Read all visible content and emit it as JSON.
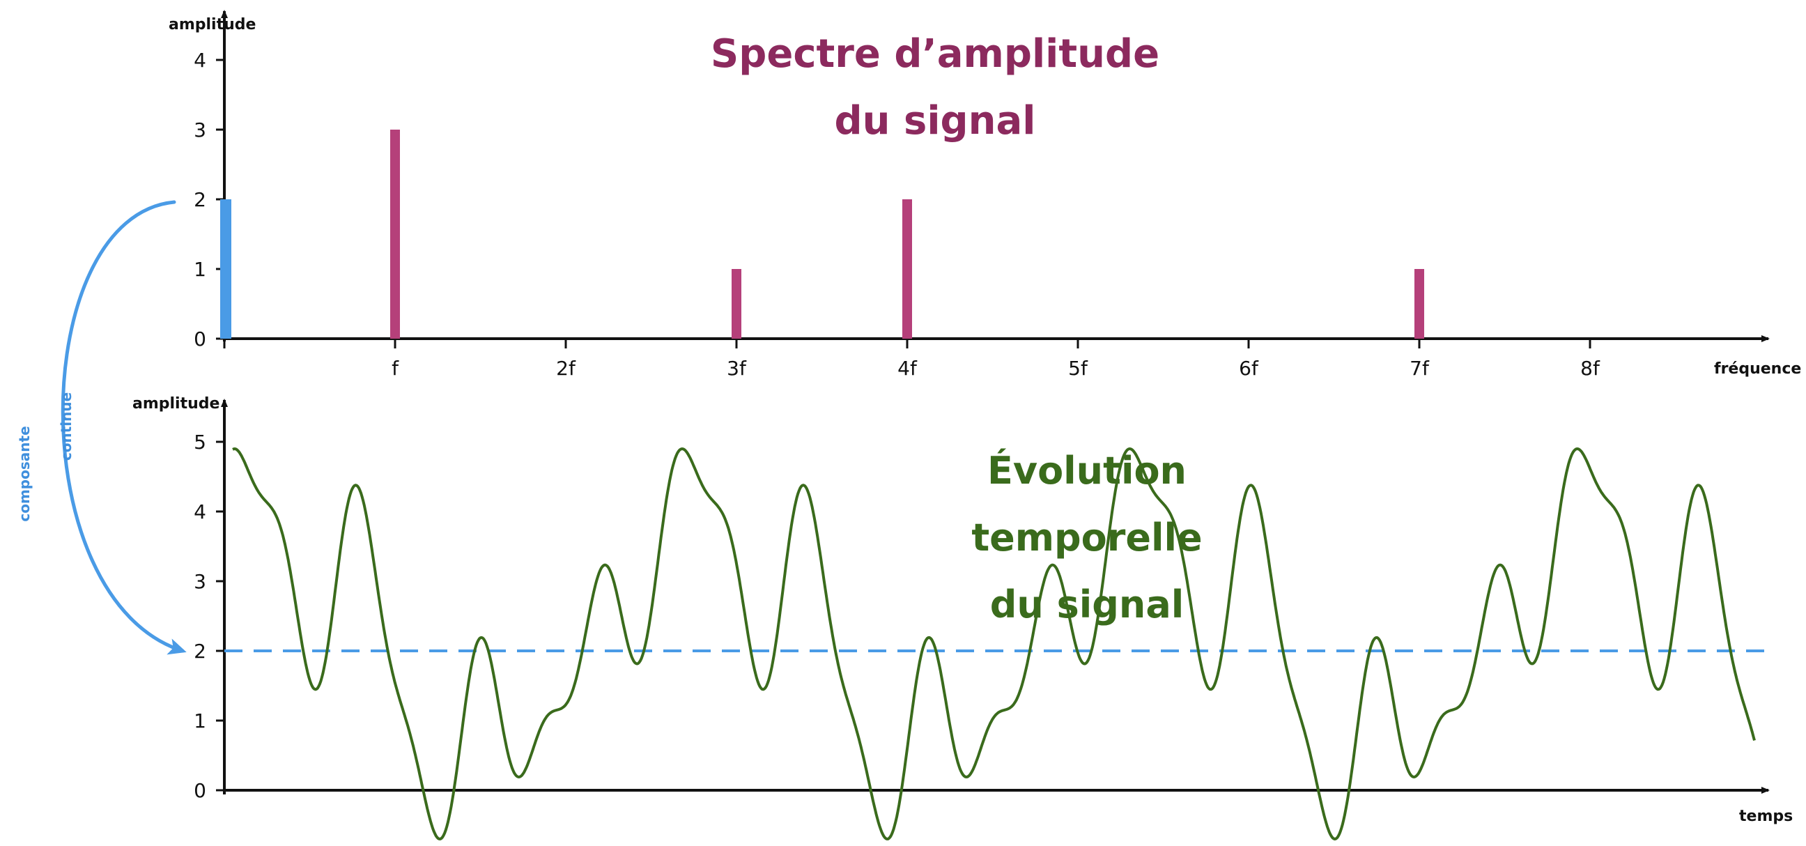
{
  "chart_data": [
    {
      "type": "bar",
      "title_lines": [
        "Spectre d’amplitude",
        "du signal"
      ],
      "xlabel": "fréquence",
      "ylabel": "amplitude",
      "categories": [
        "0",
        "f",
        "2f",
        "3f",
        "4f",
        "5f",
        "6f",
        "7f",
        "8f"
      ],
      "x_tick_labels": [
        "f",
        "2f",
        "3f",
        "4f",
        "5f",
        "6f",
        "7f",
        "8f"
      ],
      "y_ticks": [
        "0",
        "1",
        "2",
        "3",
        "4"
      ],
      "ylim": [
        0,
        4.5
      ],
      "values": [
        2,
        3,
        0,
        1,
        2,
        0,
        0,
        1,
        0
      ],
      "dc_color": "#4a9be6",
      "bar_color": "#b5407a"
    },
    {
      "type": "line",
      "title_lines": [
        "Évolution",
        "temporelle",
        "du signal"
      ],
      "xlabel": "temps",
      "ylabel": "amplitude",
      "y_ticks": [
        "0",
        "1",
        "2",
        "3",
        "4",
        "5"
      ],
      "ylim": [
        -0.8,
        5.5
      ],
      "components": [
        {
          "harmonic": 0,
          "amplitude": 2
        },
        {
          "harmonic": 1,
          "amplitude": 3
        },
        {
          "harmonic": 3,
          "amplitude": 1
        },
        {
          "harmonic": 4,
          "amplitude": 2
        },
        {
          "harmonic": 7,
          "amplitude": 1
        }
      ],
      "periods_shown": 3.4,
      "dc_level": 2,
      "line_color": "#3a6b1c",
      "dc_line_color": "#4a9be6"
    }
  ],
  "annotation": {
    "words": [
      "composante",
      "continue"
    ],
    "color": "#4a9be6"
  }
}
